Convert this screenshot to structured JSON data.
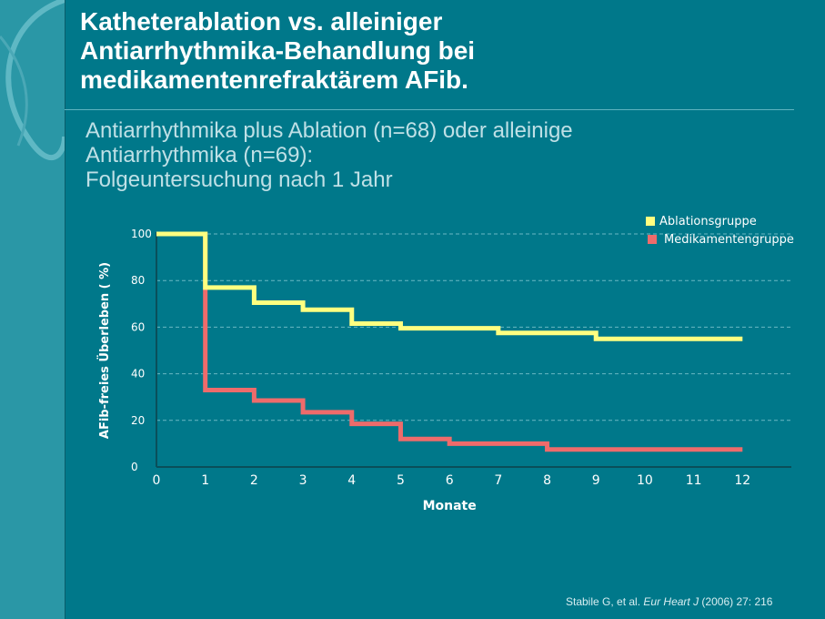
{
  "header": {
    "title_lines": [
      "Katheterablation vs. alleiniger",
      "Antiarrhythmika-Behandlung bei",
      "medikamentenrefraktärem AFib."
    ],
    "subtitle_lines": [
      "Antiarrhythmika plus Ablation (n=68) oder alleinige",
      "Antiarrhythmika (n=69):",
      "Folgeuntersuchung nach 1 Jahr"
    ]
  },
  "chart_data": {
    "type": "line",
    "step": true,
    "xlabel": "Monate",
    "ylabel": "AFib-freies Überleben ( %)",
    "xlim": [
      0,
      13
    ],
    "ylim": [
      0,
      100
    ],
    "xticks": [
      0,
      1,
      2,
      3,
      4,
      5,
      6,
      7,
      8,
      9,
      10,
      11,
      12
    ],
    "yticks": [
      0,
      20,
      40,
      60,
      80,
      100
    ],
    "grid": "horizontal-dashed",
    "legend_position": "top-right",
    "series": [
      {
        "name": "Ablationsgruppe",
        "color": "#ffff80",
        "x": [
          0,
          1,
          2,
          3,
          4,
          5,
          6,
          7,
          8,
          9,
          10,
          11,
          12
        ],
        "values": [
          100,
          77,
          70.5,
          67.5,
          61.5,
          59.5,
          59.5,
          57.5,
          57.5,
          55,
          55,
          55,
          55
        ]
      },
      {
        "name": "Medikamentengruppe",
        "color": "#ee6b6b",
        "x": [
          0,
          1,
          2,
          3,
          4,
          5,
          6,
          7,
          8,
          9,
          10,
          11,
          12
        ],
        "values": [
          100,
          33,
          28.5,
          23.5,
          18.5,
          12,
          10,
          10,
          7.5,
          7.5,
          7.5,
          7.5,
          7.5
        ]
      }
    ]
  },
  "citation": {
    "authors": "Stabile G, et al.",
    "journal": "Eur Heart J",
    "details": "(2006) 27: 216"
  }
}
